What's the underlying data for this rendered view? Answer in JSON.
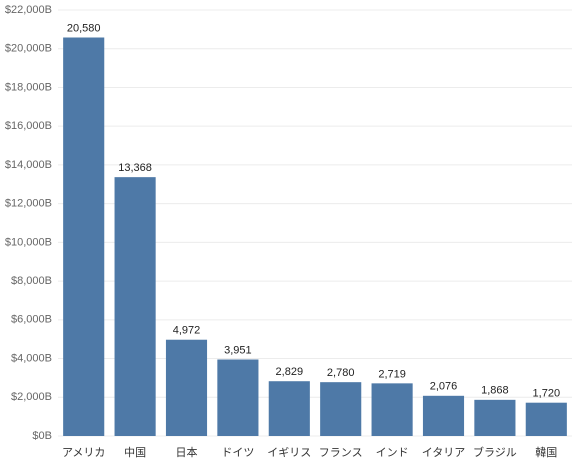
{
  "chart_data": {
    "type": "bar",
    "categories": [
      "アメリカ",
      "中国",
      "日本",
      "ドイツ",
      "イギリス",
      "フランス",
      "インド",
      "イタリア",
      "ブラジル",
      "韓国"
    ],
    "values": [
      20580,
      13368,
      4972,
      3951,
      2829,
      2780,
      2719,
      2076,
      1868,
      1720
    ],
    "value_labels": [
      "20,580",
      "13,368",
      "4,972",
      "3,951",
      "2,829",
      "2,780",
      "2,719",
      "2,076",
      "1,868",
      "1,720"
    ],
    "color": "#4e79a7",
    "ylim": [
      0,
      22000
    ],
    "yticks": [
      {
        "value": 0,
        "label": "$0B"
      },
      {
        "value": 2000,
        "label": "$2,000B"
      },
      {
        "value": 4000,
        "label": "$4,000B"
      },
      {
        "value": 6000,
        "label": "$6,000B"
      },
      {
        "value": 8000,
        "label": "$8,000B"
      },
      {
        "value": 10000,
        "label": "$10,000B"
      },
      {
        "value": 12000,
        "label": "$12,000B"
      },
      {
        "value": 14000,
        "label": "$14,000B"
      },
      {
        "value": 16000,
        "label": "$16,000B"
      },
      {
        "value": 18000,
        "label": "$18,000B"
      },
      {
        "value": 20000,
        "label": "$20,000B"
      },
      {
        "value": 22000,
        "label": "$22,000B"
      }
    ],
    "grid": true
  }
}
